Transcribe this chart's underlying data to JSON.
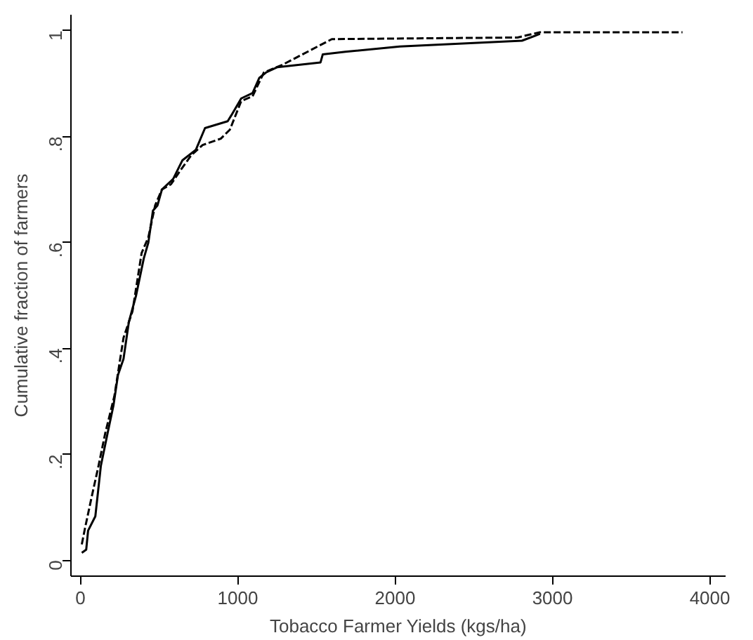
{
  "chart_data": {
    "type": "line",
    "xlabel": "Tobacco Farmer Yields (kgs/ha)",
    "ylabel": "Cumulative fraction of farmers",
    "xlim": [
      -60,
      4100
    ],
    "ylim": [
      -0.03,
      1.03
    ],
    "xticks": [
      0,
      1000,
      2000,
      3000,
      4000
    ],
    "yticks": [
      {
        "value": 0,
        "label": "0"
      },
      {
        "value": 0.2,
        "label": ".2"
      },
      {
        "value": 0.4,
        "label": ".4"
      },
      {
        "value": 0.6,
        "label": ".6"
      },
      {
        "value": 0.8,
        "label": ".8"
      },
      {
        "value": 1,
        "label": "1"
      }
    ],
    "grid": false,
    "series": [
      {
        "color": "#000000",
        "line_style": "solid",
        "x": [
          9,
          37,
          49,
          95,
          130,
          173,
          210,
          239,
          274,
          308,
          354,
          403,
          432,
          461,
          490,
          518,
          590,
          648,
          691,
          734,
          792,
          936,
          959,
          1022,
          1094,
          1137,
          1180,
          1252,
          1526,
          1540,
          1684,
          2030,
          2806,
          2921
        ],
        "values": [
          0.014,
          0.02,
          0.056,
          0.083,
          0.178,
          0.24,
          0.292,
          0.35,
          0.38,
          0.45,
          0.5,
          0.57,
          0.6,
          0.66,
          0.67,
          0.7,
          0.72,
          0.755,
          0.765,
          0.775,
          0.816,
          0.829,
          0.84,
          0.872,
          0.882,
          0.911,
          0.921,
          0.931,
          0.94,
          0.955,
          0.96,
          0.97,
          0.981,
          0.994
        ]
      },
      {
        "color": "#000000",
        "line_style": "dashed",
        "x": [
          9,
          29,
          72,
          115,
          158,
          216,
          274,
          331,
          389,
          432,
          475,
          518,
          576,
          633,
          705,
          777,
          892,
          950,
          1022,
          1094,
          1166,
          1281,
          1598,
          2777,
          2920,
          3826
        ],
        "values": [
          0.03,
          0.06,
          0.12,
          0.178,
          0.24,
          0.31,
          0.42,
          0.47,
          0.58,
          0.61,
          0.67,
          0.7,
          0.71,
          0.735,
          0.765,
          0.784,
          0.796,
          0.813,
          0.867,
          0.876,
          0.921,
          0.935,
          0.984,
          0.987,
          0.997,
          0.997
        ]
      }
    ]
  }
}
